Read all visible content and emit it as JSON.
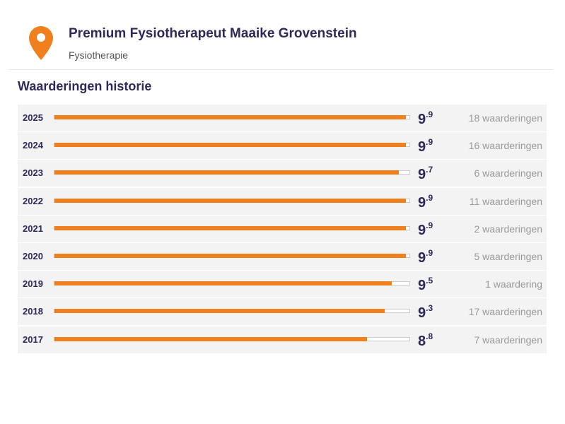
{
  "header": {
    "title": "Premium Fysiotherapeut Maaike Grovenstein",
    "subtitle": "Fysiotherapie"
  },
  "chart_data": {
    "type": "bar",
    "title": "Waarderingen historie",
    "categories": [
      "2025",
      "2024",
      "2023",
      "2022",
      "2021",
      "2020",
      "2019",
      "2018",
      "2017"
    ],
    "values": [
      9.9,
      9.9,
      9.7,
      9.9,
      9.9,
      9.9,
      9.5,
      9.3,
      8.8
    ],
    "counts": [
      "18 waarderingen",
      "16 waarderingen",
      "6 waarderingen",
      "11 waarderingen",
      "2 waarderingen",
      "5 waarderingen",
      "1 waardering",
      "17 waarderingen",
      "7 waarderingen"
    ],
    "xlim": [
      0,
      10
    ],
    "color": "#f07f1e"
  }
}
